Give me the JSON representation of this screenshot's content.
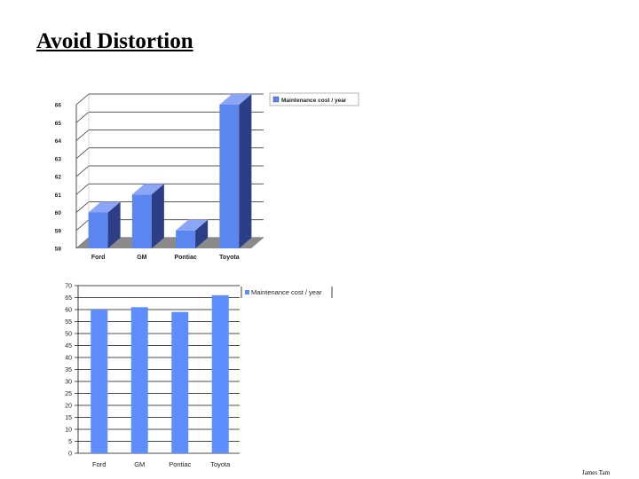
{
  "slide": {
    "title": "Avoid Distortion",
    "credit": "James  Tam"
  },
  "colors": {
    "bar_front": "#5b86f0",
    "bar_side": "#2c3f86",
    "bar_top": "#8aa6f5",
    "flat_bar": "#5d8dff",
    "floor": "#8a8a8a"
  },
  "chart_data": [
    {
      "type": "bar",
      "style": "3d",
      "categories": [
        "Ford",
        "GM",
        "Pontiac",
        "Toyota"
      ],
      "series": [
        {
          "name": "Maintenance cost / year",
          "values": [
            60,
            61,
            59,
            66
          ]
        }
      ],
      "ylim": [
        58,
        66
      ],
      "yticks": [
        "58",
        "59",
        "60",
        "61",
        "62",
        "63",
        "64",
        "65",
        "66"
      ],
      "grid": true,
      "legend": "top-right"
    },
    {
      "type": "bar",
      "style": "flat",
      "categories": [
        "Ford",
        "GM",
        "Pontiac",
        "Toyota"
      ],
      "series": [
        {
          "name": "Maintenance cost / year",
          "values": [
            60,
            61,
            59,
            66
          ]
        }
      ],
      "ylim": [
        0,
        70
      ],
      "yticks": [
        "0",
        "5",
        "10",
        "15",
        "20",
        "25",
        "30",
        "35",
        "40",
        "45",
        "50",
        "55",
        "60",
        "65",
        "70"
      ],
      "grid": true,
      "legend": "top-right"
    }
  ]
}
